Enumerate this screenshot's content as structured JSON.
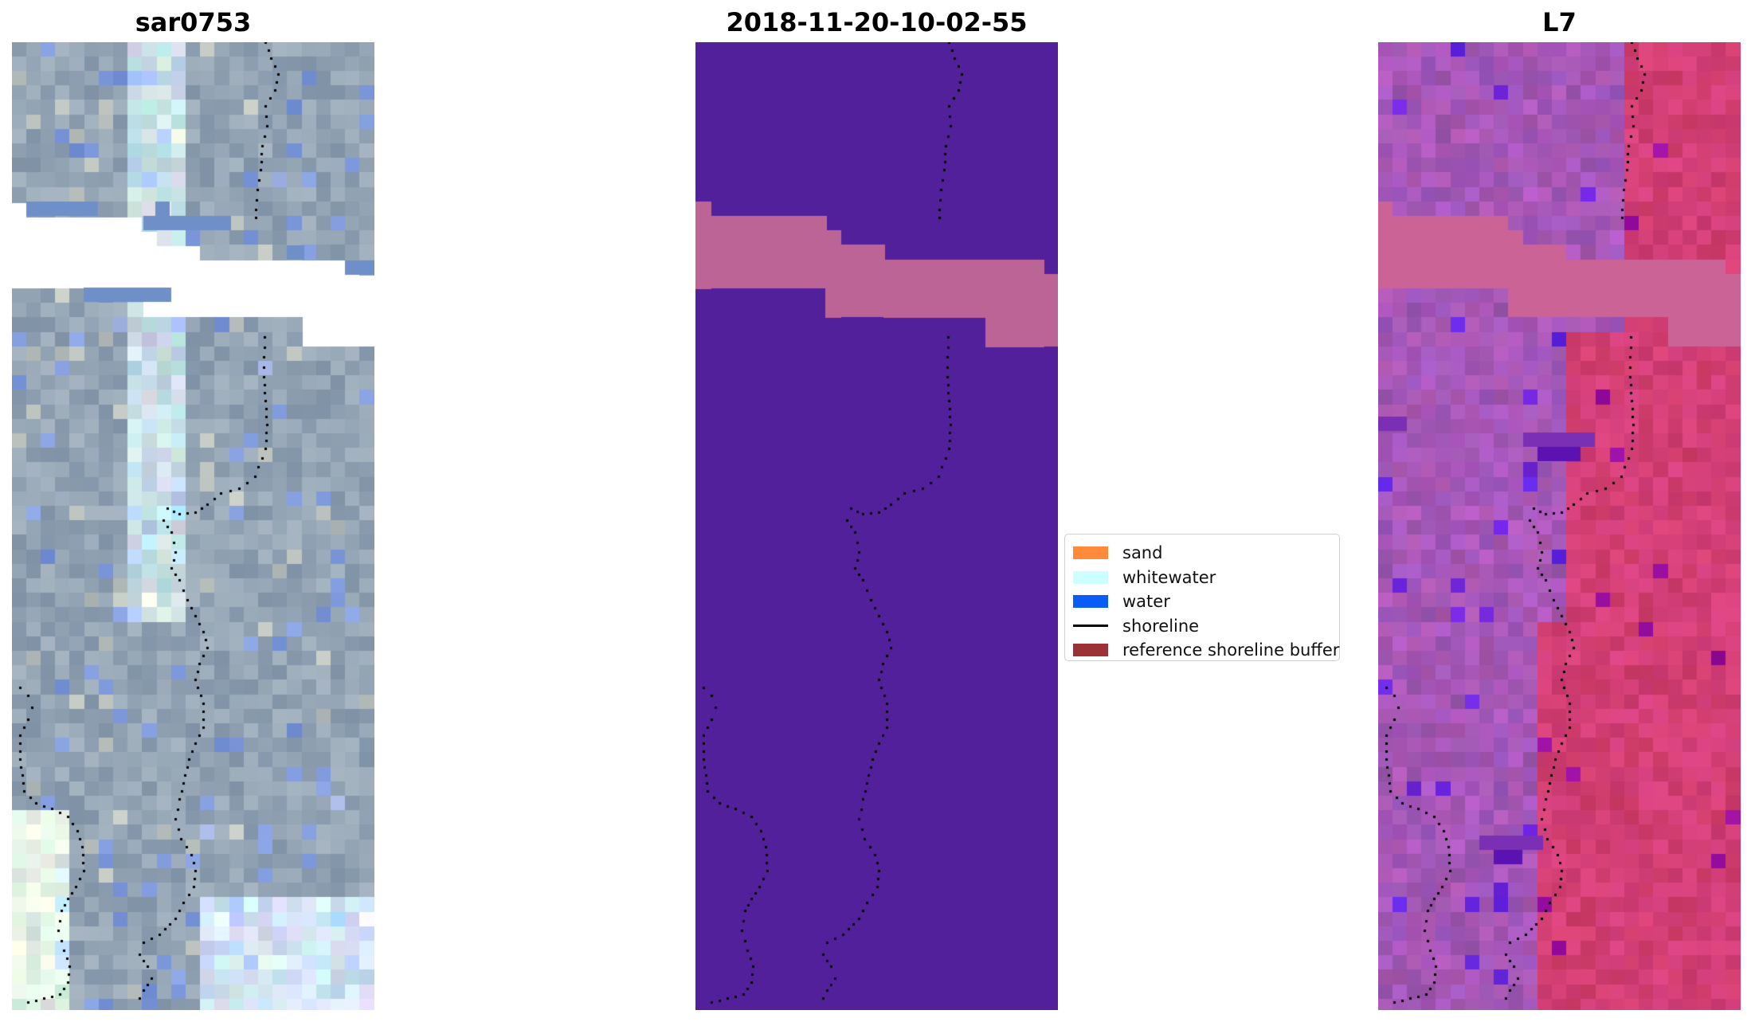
{
  "panels": [
    {
      "title": "sar0753",
      "kind": "rgb"
    },
    {
      "title": "2018-11-20-10-02-55",
      "kind": "classification"
    },
    {
      "title": "L7",
      "kind": "index"
    }
  ],
  "colors": {
    "classification_background": "#51209a",
    "cloud_mask": "#bd6497",
    "shoreline_dots": "#000000",
    "rgb_base": "#93a4b4",
    "index_base": "#c44e86"
  },
  "legend": {
    "items": [
      {
        "label": "sand",
        "color": "#ff8a3c"
      },
      {
        "label": "whitewater",
        "color": "#ccffff"
      },
      {
        "label": "water",
        "color": "#0a5cf5"
      },
      {
        "label": "shoreline",
        "color": "#000000"
      },
      {
        "label": "reference shoreline buffer",
        "color": "#9b3336"
      }
    ]
  }
}
